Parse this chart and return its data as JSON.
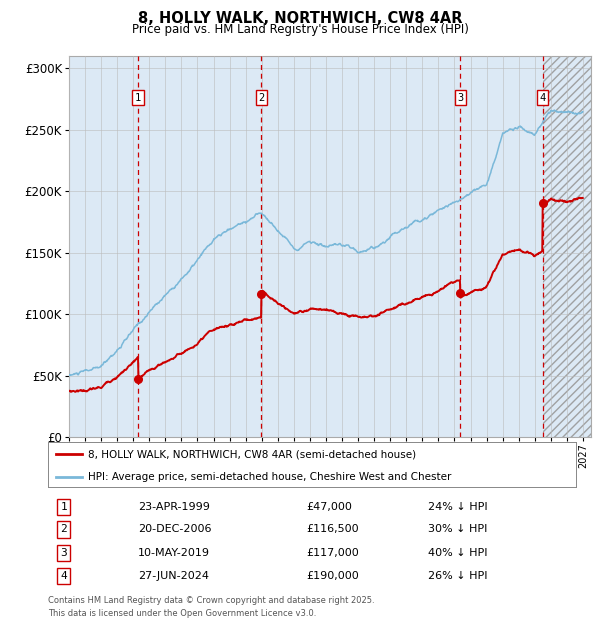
{
  "title": "8, HOLLY WALK, NORTHWICH, CW8 4AR",
  "subtitle": "Price paid vs. HM Land Registry's House Price Index (HPI)",
  "legend_line1": "8, HOLLY WALK, NORTHWICH, CW8 4AR (semi-detached house)",
  "legend_line2": "HPI: Average price, semi-detached house, Cheshire West and Chester",
  "footnote": "Contains HM Land Registry data © Crown copyright and database right 2025.\nThis data is licensed under the Open Government Licence v3.0.",
  "transactions": [
    {
      "num": 1,
      "date": "23-APR-1999",
      "price": 47000,
      "pct": "24%",
      "x_year": 1999.31
    },
    {
      "num": 2,
      "date": "20-DEC-2006",
      "price": 116500,
      "pct": "30%",
      "x_year": 2006.97
    },
    {
      "num": 3,
      "date": "10-MAY-2019",
      "price": 117000,
      "pct": "40%",
      "x_year": 2019.36
    },
    {
      "num": 4,
      "date": "27-JUN-2024",
      "price": 190000,
      "pct": "26%",
      "x_year": 2024.49
    }
  ],
  "hpi_color": "#7ab8d9",
  "price_color": "#cc0000",
  "dashed_color": "#cc0000",
  "background_color": "#dce9f5",
  "grid_color": "#bbbbbb",
  "ylim": [
    0,
    310000
  ],
  "xlim_start": 1995.0,
  "xlim_end": 2027.5,
  "yticks": [
    0,
    50000,
    100000,
    150000,
    200000,
    250000,
    300000
  ],
  "ytick_labels": [
    "£0",
    "£50K",
    "£100K",
    "£150K",
    "£200K",
    "£250K",
    "£300K"
  ],
  "future_start": 2024.5
}
